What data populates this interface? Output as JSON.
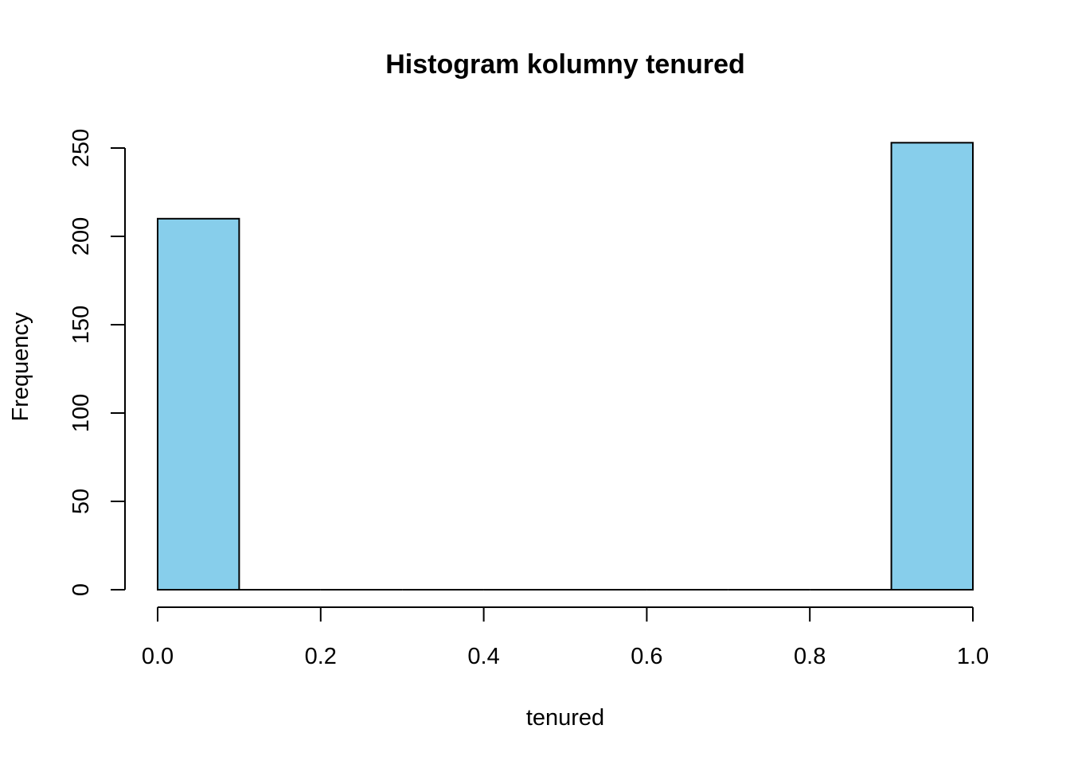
{
  "chart_data": {
    "type": "bar",
    "title": "Histogram kolumny tenured",
    "xlabel": "tenured",
    "ylabel": "Frequency",
    "bins": [
      {
        "start": 0.0,
        "end": 0.1,
        "count": 210
      },
      {
        "start": 0.1,
        "end": 0.2,
        "count": 0
      },
      {
        "start": 0.2,
        "end": 0.3,
        "count": 0
      },
      {
        "start": 0.3,
        "end": 0.4,
        "count": 0
      },
      {
        "start": 0.4,
        "end": 0.5,
        "count": 0
      },
      {
        "start": 0.5,
        "end": 0.6,
        "count": 0
      },
      {
        "start": 0.6,
        "end": 0.7,
        "count": 0
      },
      {
        "start": 0.7,
        "end": 0.8,
        "count": 0
      },
      {
        "start": 0.8,
        "end": 0.9,
        "count": 0
      },
      {
        "start": 0.9,
        "end": 1.0,
        "count": 253
      }
    ],
    "xlim": [
      0.0,
      1.0
    ],
    "ylim": [
      0,
      250
    ],
    "x_ticks": [
      0.0,
      0.2,
      0.4,
      0.6,
      0.8,
      1.0
    ],
    "x_tick_labels": [
      "0.0",
      "0.2",
      "0.4",
      "0.6",
      "0.8",
      "1.0"
    ],
    "y_ticks": [
      0,
      50,
      100,
      150,
      200,
      250
    ],
    "y_tick_labels": [
      "0",
      "50",
      "100",
      "150",
      "200",
      "250"
    ],
    "bar_color": "#87CEEB",
    "grid": false,
    "legend": false
  }
}
